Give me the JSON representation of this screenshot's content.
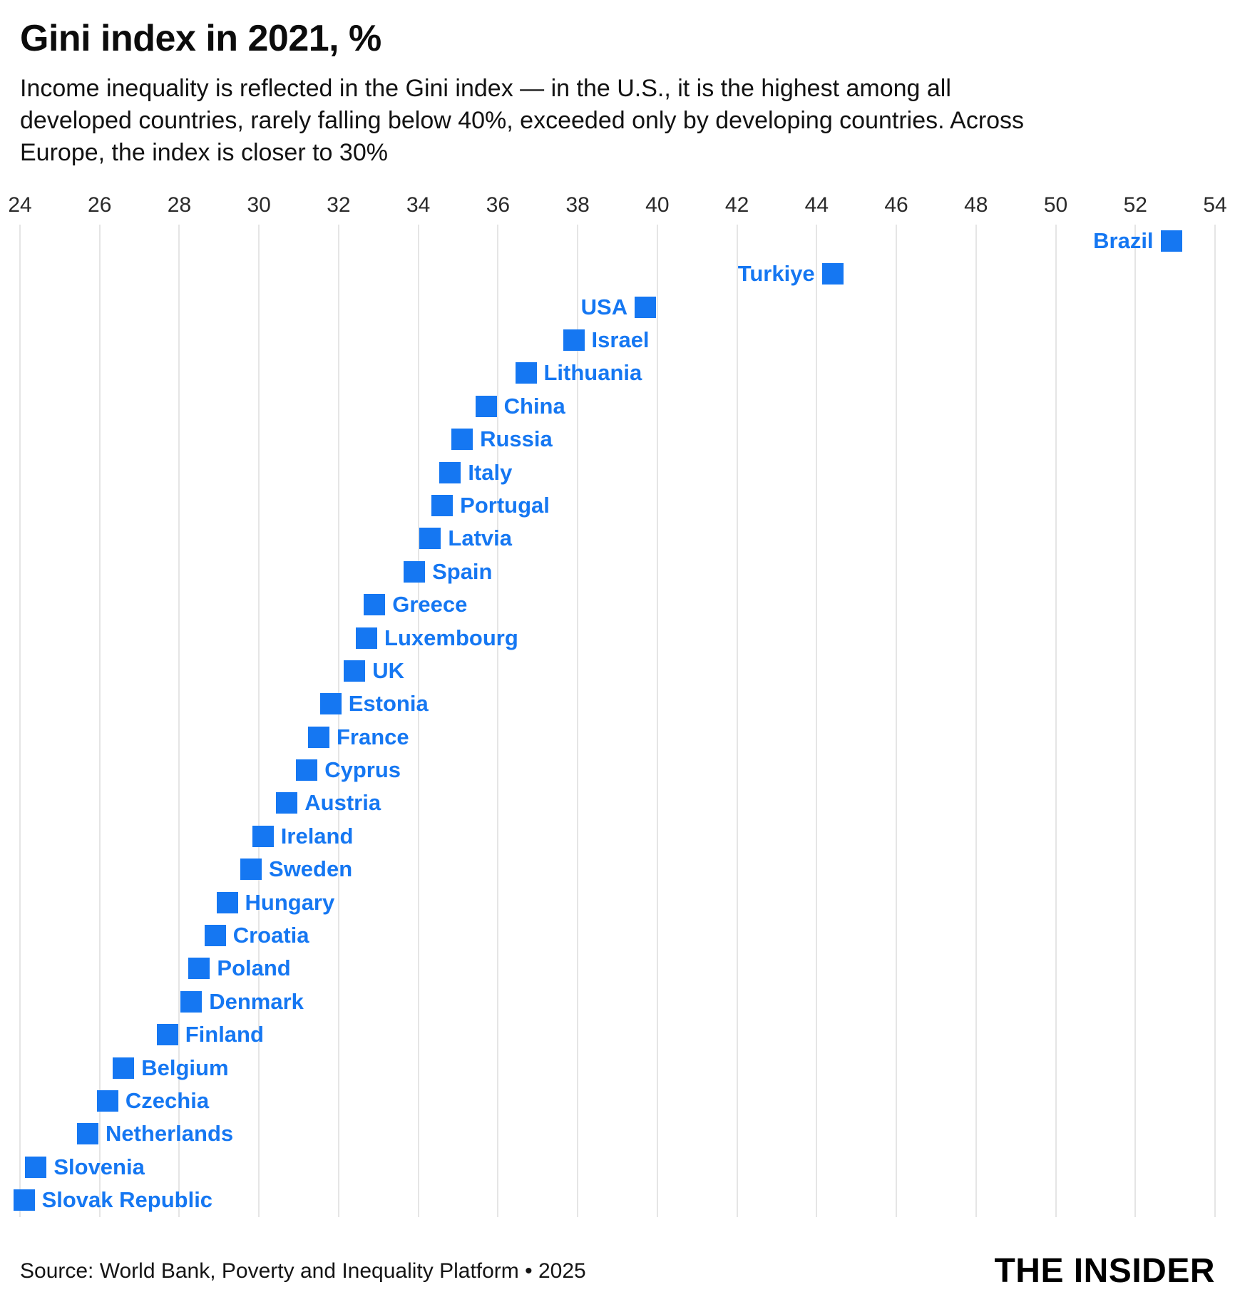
{
  "header": {
    "title": "Gini index in 2021, %",
    "subtitle": "Income inequality is reflected in the Gini index — in the U.S., it is the highest among all developed countries, rarely falling below 40%, exceeded only by developing countries. Across Europe, the index is closer to 30%"
  },
  "footer": {
    "source": "Source: World Bank, Poverty and Inequality Platform • 2025",
    "brand": "THE INSIDER"
  },
  "colors": {
    "accent_blue": "#1577F2",
    "gridline": "#e5e5e5",
    "text": "#121212"
  },
  "chart_data": {
    "type": "scatter",
    "title": "Gini index in 2021, %",
    "xlim": [
      24,
      54
    ],
    "xticks": [
      24,
      26,
      28,
      30,
      32,
      34,
      36,
      38,
      40,
      42,
      44,
      46,
      48,
      50,
      52,
      54
    ],
    "grid": true,
    "legend": "none",
    "marker": "square",
    "marker_color": "#1577F2",
    "points": [
      {
        "country": "Brazil",
        "value": 52.9,
        "label_side": "left"
      },
      {
        "country": "Turkiye",
        "value": 44.4,
        "label_side": "left"
      },
      {
        "country": "USA",
        "value": 39.7,
        "label_side": "left"
      },
      {
        "country": "Israel",
        "value": 37.9,
        "label_side": "right"
      },
      {
        "country": "Lithuania",
        "value": 36.7,
        "label_side": "right"
      },
      {
        "country": "China",
        "value": 35.7,
        "label_side": "right"
      },
      {
        "country": "Russia",
        "value": 35.1,
        "label_side": "right"
      },
      {
        "country": "Italy",
        "value": 34.8,
        "label_side": "right"
      },
      {
        "country": "Portugal",
        "value": 34.6,
        "label_side": "right"
      },
      {
        "country": "Latvia",
        "value": 34.3,
        "label_side": "right"
      },
      {
        "country": "Spain",
        "value": 33.9,
        "label_side": "right"
      },
      {
        "country": "Greece",
        "value": 32.9,
        "label_side": "right"
      },
      {
        "country": "Luxembourg",
        "value": 32.7,
        "label_side": "right"
      },
      {
        "country": "UK",
        "value": 32.4,
        "label_side": "right"
      },
      {
        "country": "Estonia",
        "value": 31.8,
        "label_side": "right"
      },
      {
        "country": "France",
        "value": 31.5,
        "label_side": "right"
      },
      {
        "country": "Cyprus",
        "value": 31.2,
        "label_side": "right"
      },
      {
        "country": "Austria",
        "value": 30.7,
        "label_side": "right"
      },
      {
        "country": "Ireland",
        "value": 30.1,
        "label_side": "right"
      },
      {
        "country": "Sweden",
        "value": 29.8,
        "label_side": "right"
      },
      {
        "country": "Hungary",
        "value": 29.2,
        "label_side": "right"
      },
      {
        "country": "Croatia",
        "value": 28.9,
        "label_side": "right"
      },
      {
        "country": "Poland",
        "value": 28.5,
        "label_side": "right"
      },
      {
        "country": "Denmark",
        "value": 28.3,
        "label_side": "right"
      },
      {
        "country": "Finland",
        "value": 27.7,
        "label_side": "right"
      },
      {
        "country": "Belgium",
        "value": 26.6,
        "label_side": "right"
      },
      {
        "country": "Czechia",
        "value": 26.2,
        "label_side": "right"
      },
      {
        "country": "Netherlands",
        "value": 25.7,
        "label_side": "right"
      },
      {
        "country": "Slovenia",
        "value": 24.4,
        "label_side": "right"
      },
      {
        "country": "Slovak Republic",
        "value": 24.1,
        "label_side": "right"
      }
    ]
  }
}
